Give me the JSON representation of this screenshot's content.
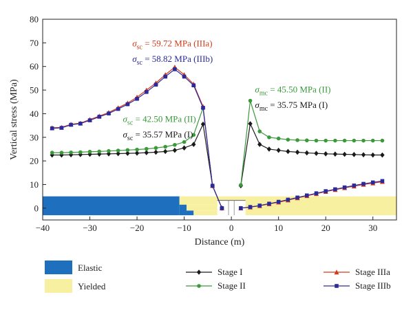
{
  "chart_data": {
    "type": "line",
    "xlabel": "Distance (m)",
    "ylabel": "Vertical stress (MPa)",
    "xlim": [
      -40,
      35
    ],
    "ylim": [
      -5,
      80
    ],
    "x_ticks": [
      -40,
      -30,
      -20,
      -10,
      0,
      10,
      20,
      30
    ],
    "y_ticks": [
      0,
      10,
      20,
      30,
      40,
      50,
      60,
      70,
      80
    ],
    "grid": false,
    "legend_position": "bottom",
    "colors": {
      "elastic": "#1f6fbf",
      "yielded": "#f7f0a0",
      "stage_I": "#1a1a1a",
      "stage_II": "#3a9a3a",
      "stage_IIIa": "#d23a1a",
      "stage_IIIb": "#2a2a9a"
    },
    "series": [
      {
        "name": "Stage I",
        "key": "stage_I",
        "marker": "diamond",
        "left_x": [
          -38,
          -36,
          -34,
          -32,
          -30,
          -28,
          -26,
          -24,
          -22,
          -20,
          -18,
          -16,
          -14,
          -12,
          -10,
          -8,
          -6,
          -4,
          -2
        ],
        "left_y": [
          22.5,
          22.5,
          22.6,
          22.7,
          22.8,
          22.9,
          23.0,
          23.1,
          23.2,
          23.3,
          23.5,
          23.7,
          24.0,
          24.5,
          25.5,
          27.0,
          35.57,
          9.5,
          0
        ],
        "right_x": [
          2,
          4,
          6,
          8,
          10,
          12,
          14,
          16,
          18,
          20,
          22,
          24,
          26,
          28,
          30,
          32
        ],
        "right_y": [
          9.5,
          35.75,
          27.0,
          25.0,
          24.5,
          24.0,
          23.7,
          23.4,
          23.2,
          23.0,
          22.9,
          22.8,
          22.7,
          22.6,
          22.5,
          22.5
        ]
      },
      {
        "name": "Stage II",
        "key": "stage_II",
        "marker": "circle",
        "left_x": [
          -38,
          -36,
          -34,
          -32,
          -30,
          -28,
          -26,
          -24,
          -22,
          -20,
          -18,
          -16,
          -14,
          -12,
          -10,
          -8,
          -6,
          -4,
          -2
        ],
        "left_y": [
          23.5,
          23.5,
          23.6,
          23.7,
          23.9,
          24.0,
          24.2,
          24.4,
          24.6,
          24.8,
          25.1,
          25.5,
          26.0,
          26.8,
          28.0,
          31.0,
          42.5,
          9.5,
          0
        ],
        "right_x": [
          2,
          4,
          6,
          8,
          10,
          12,
          14,
          16,
          18,
          20,
          22,
          24,
          26,
          28,
          30,
          32
        ],
        "right_y": [
          9.8,
          45.5,
          32.5,
          30.0,
          29.5,
          29.0,
          28.8,
          28.7,
          28.6,
          28.6,
          28.6,
          28.6,
          28.6,
          28.6,
          28.6,
          28.6
        ]
      },
      {
        "name": "Stage IIIa",
        "key": "stage_IIIa",
        "marker": "triangle",
        "left_x": [
          -38,
          -36,
          -34,
          -32,
          -30,
          -28,
          -26,
          -24,
          -22,
          -20,
          -18,
          -16,
          -14,
          -12,
          -10,
          -8,
          -6,
          -4,
          -2
        ],
        "left_y": [
          34.0,
          34.2,
          35.5,
          36.0,
          37.5,
          39.0,
          40.5,
          42.5,
          44.5,
          47.0,
          50.0,
          53.0,
          56.5,
          59.72,
          56.5,
          52.5,
          43.0,
          9.5,
          0
        ],
        "right_x": [
          2,
          4,
          6,
          8,
          10,
          12,
          14,
          16,
          18,
          20,
          22,
          24,
          26,
          28,
          30,
          32
        ],
        "right_y": [
          0,
          0.4,
          1.0,
          1.8,
          2.5,
          3.4,
          4.3,
          5.2,
          6.1,
          7.0,
          7.8,
          8.6,
          9.3,
          10.0,
          10.6,
          11.2
        ]
      },
      {
        "name": "Stage IIIb",
        "key": "stage_IIIb",
        "marker": "square",
        "left_x": [
          -38,
          -36,
          -34,
          -32,
          -30,
          -28,
          -26,
          -24,
          -22,
          -20,
          -18,
          -16,
          -14,
          -12,
          -10,
          -8,
          -6,
          -4,
          -2
        ],
        "left_y": [
          33.8,
          34.0,
          35.3,
          35.8,
          37.2,
          38.7,
          40.1,
          42.0,
          44.0,
          46.3,
          49.2,
          52.3,
          55.7,
          58.82,
          55.7,
          52.0,
          42.5,
          9.5,
          0
        ],
        "right_x": [
          2,
          4,
          6,
          8,
          10,
          12,
          14,
          16,
          18,
          20,
          22,
          24,
          26,
          28,
          30,
          32
        ],
        "right_y": [
          0,
          0.5,
          1.1,
          1.9,
          2.7,
          3.6,
          4.5,
          5.4,
          6.3,
          7.2,
          8.0,
          8.8,
          9.6,
          10.3,
          10.9,
          11.5
        ]
      }
    ],
    "annotations": [
      {
        "sym": "σ",
        "sub": "sc",
        "text": " = 59.72 MPa (IIIa)",
        "color": "#d23a1a",
        "x": -21,
        "y": 68.5
      },
      {
        "sym": "σ",
        "sub": "sc",
        "text": " = 58.82 MPa (IIIb)",
        "color": "#2a2a9a",
        "x": -21,
        "y": 62
      },
      {
        "sym": "σ",
        "sub": "sc",
        "text": " = 42.50 MPa (II)",
        "color": "#3a9a3a",
        "x": -23,
        "y": 36.5
      },
      {
        "sym": "σ",
        "sub": "sc",
        "text": " = 35.57 MPa (I)",
        "color": "#1a1a1a",
        "x": -23,
        "y": 30
      },
      {
        "sym": "σ",
        "sub": "mc",
        "text": " = 45.50 MPa (II)",
        "color": "#3a9a3a",
        "x": 5,
        "y": 49
      },
      {
        "sym": "σ",
        "sub": "mc",
        "text": " = 35.75 MPa (I)",
        "color": "#1a1a1a",
        "x": 5,
        "y": 42.5
      }
    ],
    "zones": {
      "elastic": [
        {
          "x0": -40,
          "x1": -11,
          "y0": -3,
          "y1": 5
        },
        {
          "x0": -11,
          "x1": -9.5,
          "y0": -3,
          "y1": 1.5
        },
        {
          "x0": -9.5,
          "x1": -8,
          "y0": -3,
          "y1": -1
        }
      ],
      "yielded": [
        {
          "x0": -11,
          "x1": -3,
          "y0": 1.5,
          "y1": 5
        },
        {
          "x0": -9.5,
          "x1": -3,
          "y0": -1,
          "y1": 1.5
        },
        {
          "x0": -8,
          "x1": -3,
          "y0": -3,
          "y1": -1
        },
        {
          "x0": 3,
          "x1": 35,
          "y0": -3,
          "y1": 5
        },
        {
          "x0": -3,
          "x1": 3,
          "y0": 3.3,
          "y1": 5
        }
      ]
    },
    "legend": {
      "zones": [
        {
          "label": "Elastic",
          "color_key": "elastic"
        },
        {
          "label": "Yielded",
          "color_key": "yielded"
        }
      ]
    }
  }
}
